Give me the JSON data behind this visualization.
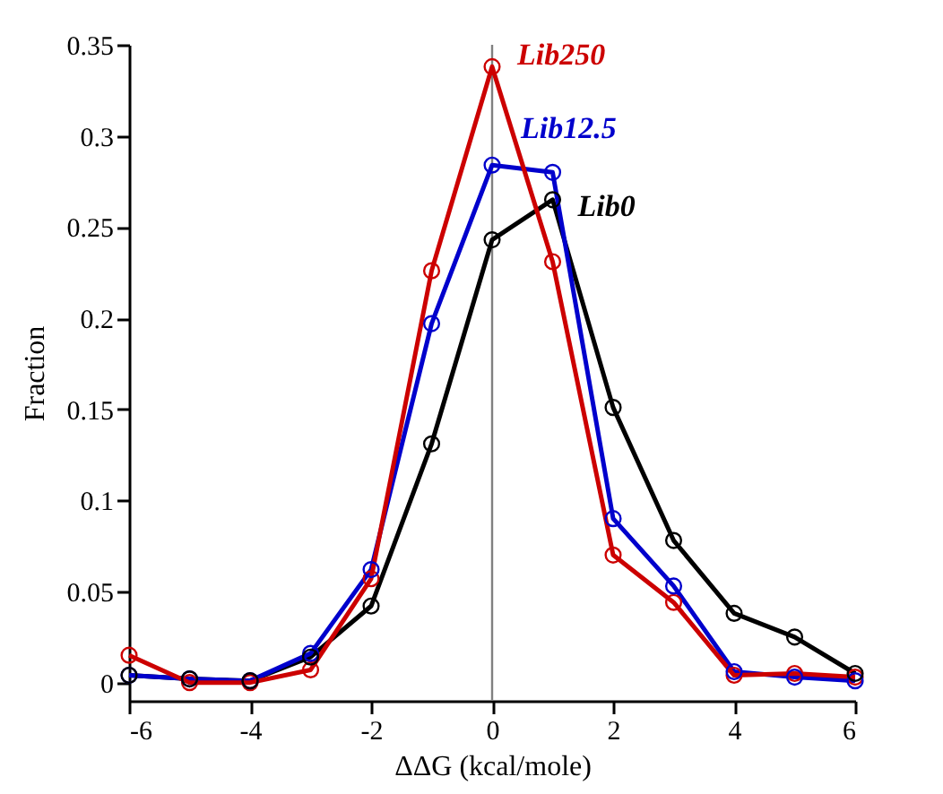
{
  "chart_data": {
    "type": "line",
    "xlabel": "ΔΔG (kcal/mole)",
    "ylabel": "Fraction",
    "x": [
      -6,
      -5,
      -4,
      -3,
      -2,
      -1,
      0,
      1,
      2,
      3,
      4,
      5,
      6
    ],
    "series": [
      {
        "name": "Lib0",
        "color": "#000000",
        "values": [
          0.004,
          0.002,
          0.001,
          0.014,
          0.042,
          0.131,
          0.243,
          0.265,
          0.151,
          0.078,
          0.038,
          0.025,
          0.005
        ]
      },
      {
        "name": "Lib12.5",
        "color": "#0000cc",
        "values": [
          0.004,
          0.002,
          0.001,
          0.016,
          0.062,
          0.197,
          0.284,
          0.28,
          0.09,
          0.053,
          0.006,
          0.003,
          0.001
        ]
      },
      {
        "name": "Lib250",
        "color": "#cc0000",
        "values": [
          0.015,
          0.0,
          0.0,
          0.007,
          0.057,
          0.226,
          0.338,
          0.231,
          0.07,
          0.044,
          0.004,
          0.005,
          0.003
        ]
      }
    ],
    "xlim": [
      -6,
      6
    ],
    "ylim": [
      -0.01,
      0.35
    ],
    "xticks": [
      -6,
      -4,
      -2,
      0,
      2,
      4,
      6
    ],
    "yticks": [
      0,
      0.05,
      0.1,
      0.15,
      0.2,
      0.25,
      0.3,
      0.35
    ],
    "ref_lines": [
      {
        "axis": "x",
        "value": 0,
        "color": "#808080"
      }
    ],
    "marker": "circle",
    "grid": false,
    "legend": false
  }
}
